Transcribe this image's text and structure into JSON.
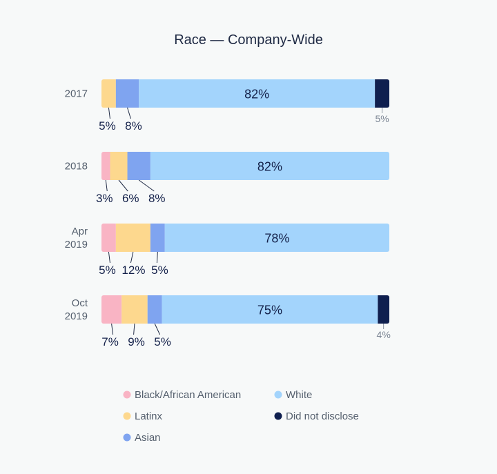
{
  "chart_data": {
    "type": "bar",
    "orientation": "horizontal",
    "stacked": true,
    "title": "Race — Company-Wide",
    "categories": [
      "2017",
      "2018",
      "Apr 2019",
      "Oct 2019"
    ],
    "category_lines": [
      [
        "2017"
      ],
      [
        "2018"
      ],
      [
        "Apr",
        "2019"
      ],
      [
        "Oct",
        "2019"
      ]
    ],
    "series": [
      {
        "name": "Black/African American",
        "color": "#f9b4c4",
        "values": [
          0,
          3,
          5,
          7
        ],
        "labels": [
          "",
          "3%",
          "5%",
          "7%"
        ]
      },
      {
        "name": "Latinx",
        "color": "#fdd88e",
        "values": [
          5,
          6,
          12,
          9
        ],
        "labels": [
          "5%",
          "6%",
          "12%",
          "9%"
        ]
      },
      {
        "name": "Asian",
        "color": "#7fa4f0",
        "values": [
          8,
          8,
          5,
          5
        ],
        "labels": [
          "8%",
          "8%",
          "5%",
          "5%"
        ]
      },
      {
        "name": "White",
        "color": "#a3d4fc",
        "values": [
          82,
          82,
          78,
          75
        ],
        "labels": [
          "82%",
          "82%",
          "78%",
          "75%"
        ]
      },
      {
        "name": "Did not disclose",
        "color": "#0f1f4f",
        "values": [
          5,
          0,
          0,
          4
        ],
        "labels": [
          "5%",
          "",
          "",
          "4%"
        ]
      }
    ],
    "xlim": [
      0,
      100
    ],
    "grid": false,
    "legend": {
      "position": "bottom",
      "columns": 2,
      "order": [
        "Black/African American",
        "White",
        "Latinx",
        "Did not disclose",
        "Asian"
      ]
    }
  }
}
